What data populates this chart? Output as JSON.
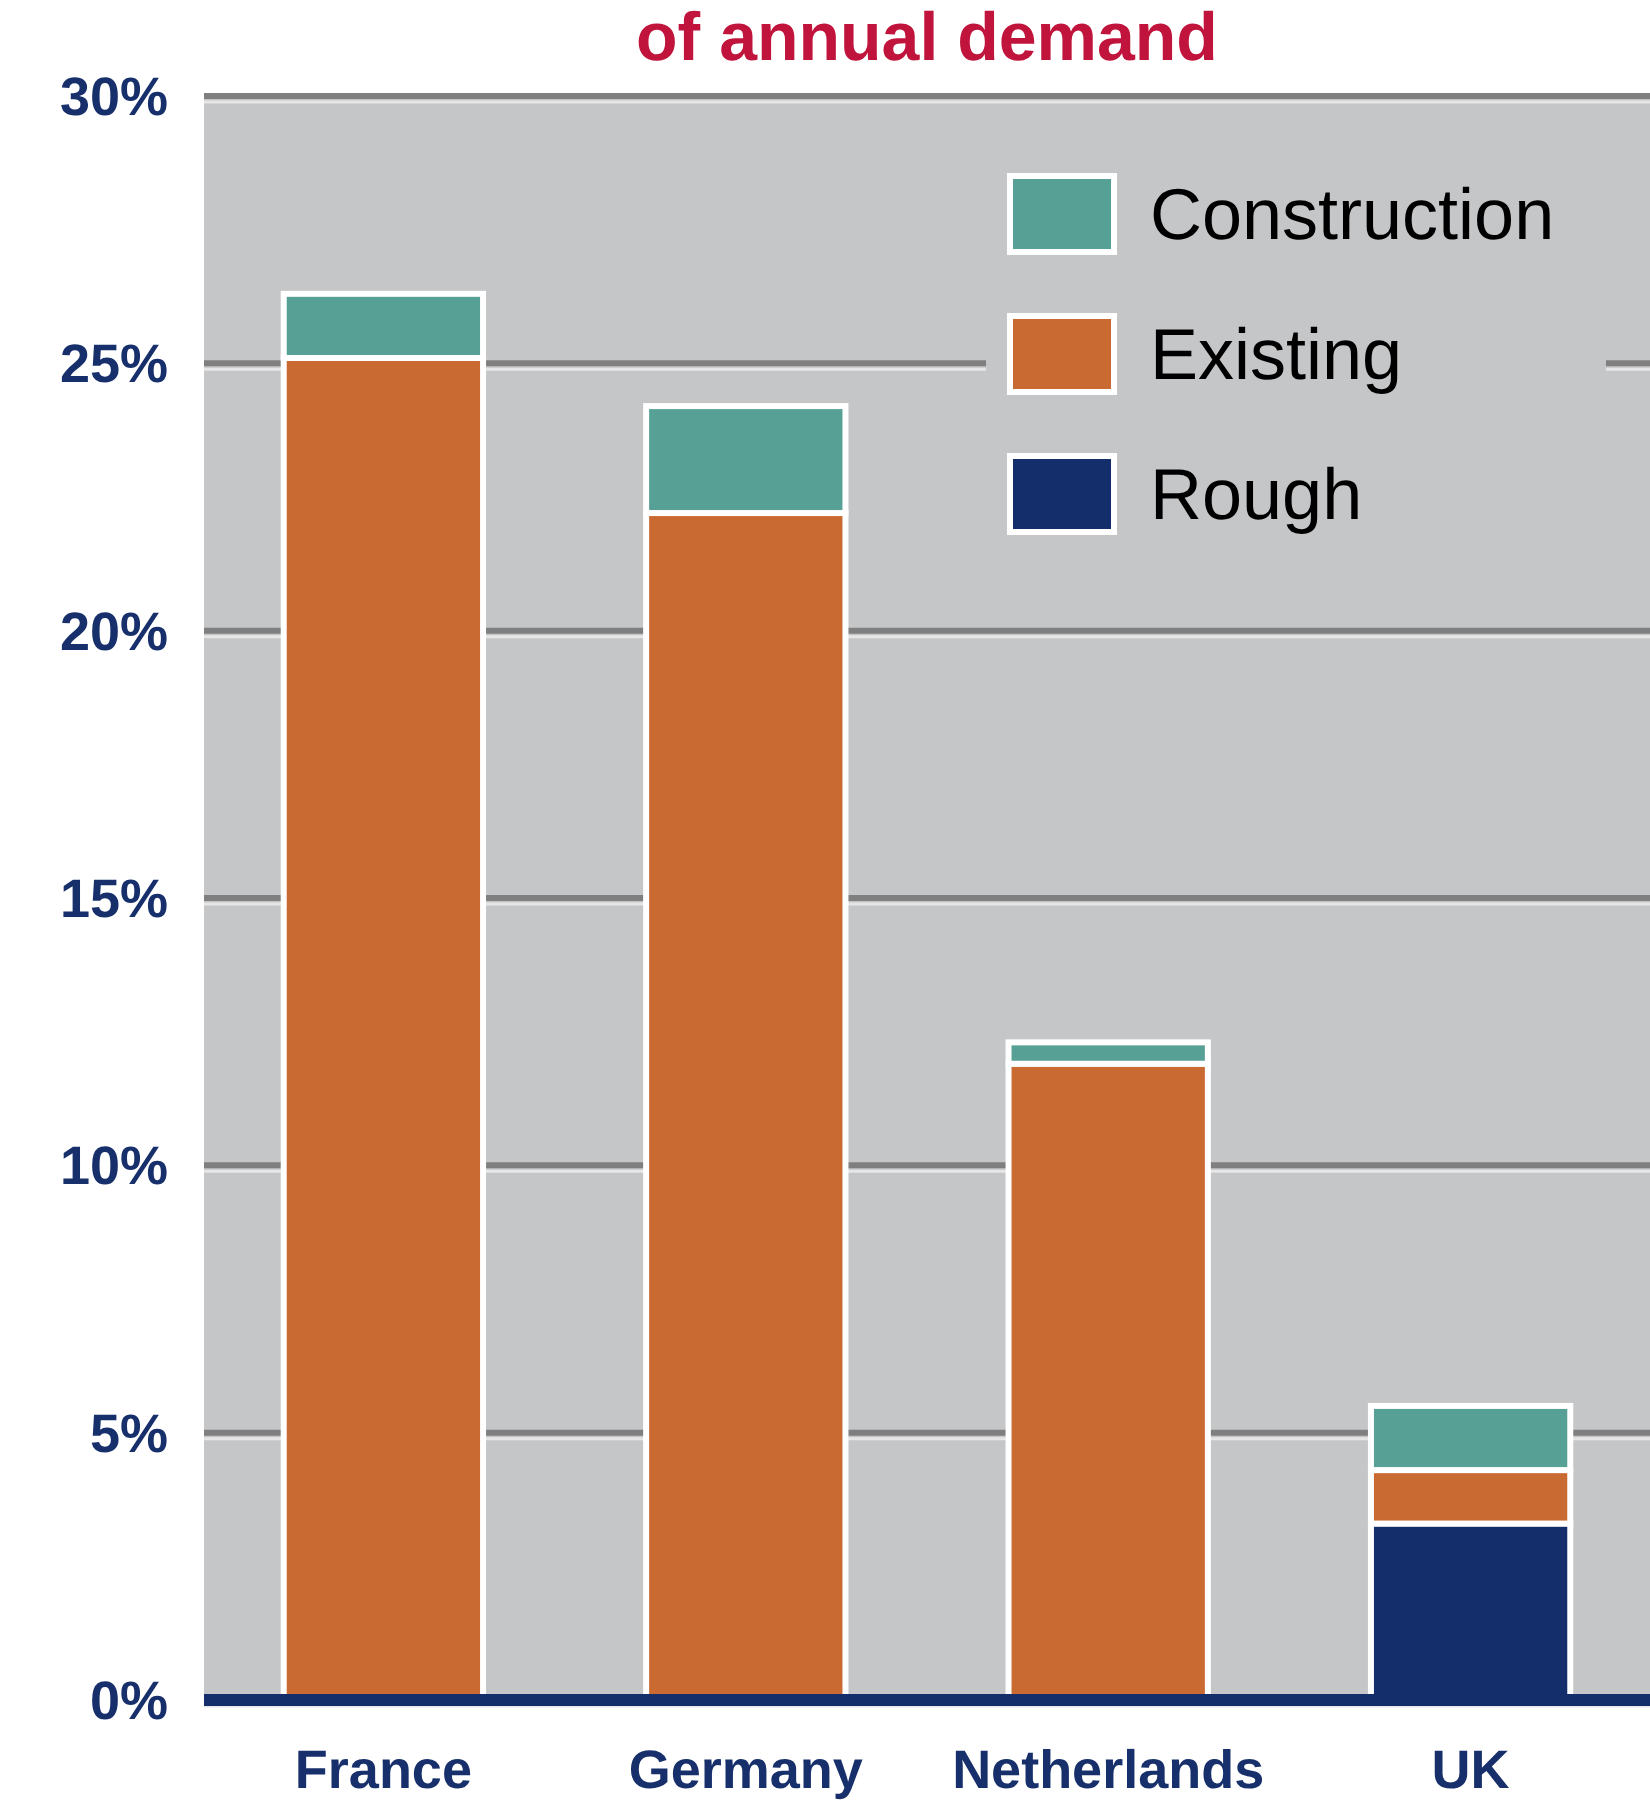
{
  "chart_data": {
    "type": "bar",
    "title": "of annual demand",
    "stacked": true,
    "categories": [
      "France",
      "Germany",
      "Netherlands",
      "UK"
    ],
    "series": [
      {
        "name": "Rough",
        "color": "#142d6b",
        "values": [
          0,
          0,
          0,
          3.3
        ]
      },
      {
        "name": "Existing",
        "color": "#c96a32",
        "values": [
          25.1,
          22.2,
          11.9,
          1.0
        ]
      },
      {
        "name": "Construction",
        "color": "#56a095",
        "values": [
          1.2,
          2.0,
          0.4,
          1.2
        ]
      }
    ],
    "ylim": [
      0,
      30
    ],
    "yticks": [
      {
        "value": 0,
        "label": "0%"
      },
      {
        "value": 5,
        "label": "5%"
      },
      {
        "value": 10,
        "label": "10%"
      },
      {
        "value": 15,
        "label": "15%"
      },
      {
        "value": 20,
        "label": "20%"
      },
      {
        "value": 25,
        "label": "25%"
      },
      {
        "value": 30,
        "label": "30%"
      }
    ],
    "grid": "y",
    "legend": "top right"
  }
}
